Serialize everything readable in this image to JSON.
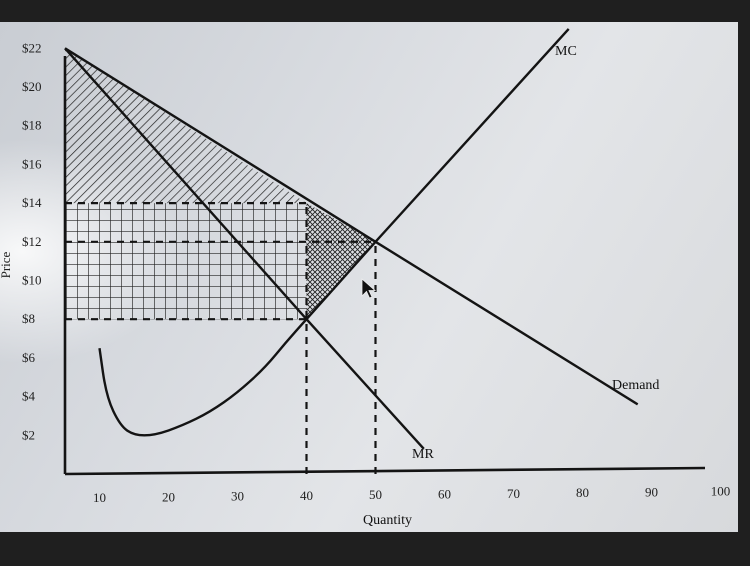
{
  "chart_data": {
    "type": "line",
    "title": "",
    "xlabel": "Quantity",
    "ylabel": "Price",
    "xlim": [
      5,
      100
    ],
    "ylim": [
      0,
      23
    ],
    "x_ticks": [
      10,
      20,
      30,
      40,
      50,
      60,
      70,
      80,
      90,
      100
    ],
    "x_tick_labels": [
      "10",
      "20",
      "30",
      "40",
      "50",
      "60",
      "70",
      "80",
      "90",
      "100"
    ],
    "y_ticks": [
      2,
      4,
      6,
      8,
      10,
      12,
      14,
      16,
      18,
      20,
      22
    ],
    "y_tick_labels": [
      "$2",
      "$4",
      "$6",
      "$8",
      "$10",
      "$12",
      "$14",
      "$16",
      "$18",
      "$20",
      "$22"
    ],
    "series": [
      {
        "name": "Demand",
        "x": [
          5,
          50,
          88
        ],
        "y": [
          22,
          12,
          3.6
        ]
      },
      {
        "name": "MR",
        "x": [
          5,
          40,
          57
        ],
        "y": [
          22,
          8,
          1.3
        ]
      },
      {
        "name": "MC",
        "x": [
          40,
          50,
          78
        ],
        "y": [
          8,
          12,
          23
        ]
      },
      {
        "name": "",
        "x": [
          10,
          11,
          13,
          15,
          18,
          22,
          26,
          30,
          34,
          37,
          40
        ],
        "y": [
          6.5,
          4,
          2.5,
          2.0,
          2.0,
          2.5,
          3.2,
          4.2,
          5.5,
          6.8,
          8
        ]
      }
    ],
    "reference_lines": [
      {
        "orientation": "horizontal",
        "y": 14,
        "x_from": 5,
        "x_to": 40,
        "style": "dashed"
      },
      {
        "orientation": "horizontal",
        "y": 12,
        "x_from": 5,
        "x_to": 50,
        "style": "dashed"
      },
      {
        "orientation": "horizontal",
        "y": 8,
        "x_from": 5,
        "x_to": 40,
        "style": "dashed"
      },
      {
        "orientation": "vertical",
        "x": 40,
        "y_from": 0,
        "y_to": 14,
        "style": "dashed"
      },
      {
        "orientation": "vertical",
        "x": 50,
        "y_from": 0,
        "y_to": 12,
        "style": "dashed"
      }
    ],
    "shaded_regions": [
      {
        "fill": "diagonal-hatch",
        "polygon_data": [
          [
            5,
            22
          ],
          [
            40,
            14
          ],
          [
            5,
            14
          ]
        ]
      },
      {
        "fill": "grid",
        "polygon_data": [
          [
            5,
            14
          ],
          [
            40,
            14
          ],
          [
            40,
            8
          ],
          [
            5,
            8
          ]
        ]
      },
      {
        "fill": "cross-hatch",
        "polygon_data": [
          [
            40,
            14
          ],
          [
            50,
            12
          ],
          [
            40,
            8
          ]
        ]
      }
    ],
    "grid": false,
    "legend": "none"
  },
  "colors": {
    "line": "#141414",
    "axis": "#141414"
  }
}
